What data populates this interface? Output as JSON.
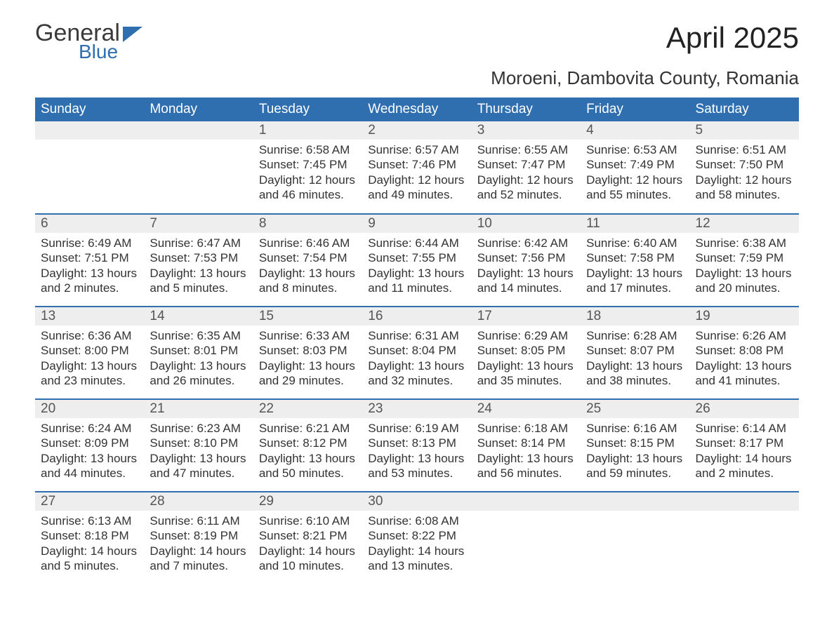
{
  "logo": {
    "text1": "General",
    "text2": "Blue"
  },
  "title": "April 2025",
  "location": "Moroeni, Dambovita County, Romania",
  "colors": {
    "header_bg": "#2f6fb0",
    "header_fg": "#ffffff",
    "daynum_bg": "#eeeeee",
    "text": "#333333",
    "page_bg": "#ffffff"
  },
  "dow": [
    "Sunday",
    "Monday",
    "Tuesday",
    "Wednesday",
    "Thursday",
    "Friday",
    "Saturday"
  ],
  "weeks": [
    [
      null,
      null,
      {
        "n": "1",
        "sr": "Sunrise: 6:58 AM",
        "ss": "Sunset: 7:45 PM",
        "d1": "Daylight: 12 hours",
        "d2": "and 46 minutes."
      },
      {
        "n": "2",
        "sr": "Sunrise: 6:57 AM",
        "ss": "Sunset: 7:46 PM",
        "d1": "Daylight: 12 hours",
        "d2": "and 49 minutes."
      },
      {
        "n": "3",
        "sr": "Sunrise: 6:55 AM",
        "ss": "Sunset: 7:47 PM",
        "d1": "Daylight: 12 hours",
        "d2": "and 52 minutes."
      },
      {
        "n": "4",
        "sr": "Sunrise: 6:53 AM",
        "ss": "Sunset: 7:49 PM",
        "d1": "Daylight: 12 hours",
        "d2": "and 55 minutes."
      },
      {
        "n": "5",
        "sr": "Sunrise: 6:51 AM",
        "ss": "Sunset: 7:50 PM",
        "d1": "Daylight: 12 hours",
        "d2": "and 58 minutes."
      }
    ],
    [
      {
        "n": "6",
        "sr": "Sunrise: 6:49 AM",
        "ss": "Sunset: 7:51 PM",
        "d1": "Daylight: 13 hours",
        "d2": "and 2 minutes."
      },
      {
        "n": "7",
        "sr": "Sunrise: 6:47 AM",
        "ss": "Sunset: 7:53 PM",
        "d1": "Daylight: 13 hours",
        "d2": "and 5 minutes."
      },
      {
        "n": "8",
        "sr": "Sunrise: 6:46 AM",
        "ss": "Sunset: 7:54 PM",
        "d1": "Daylight: 13 hours",
        "d2": "and 8 minutes."
      },
      {
        "n": "9",
        "sr": "Sunrise: 6:44 AM",
        "ss": "Sunset: 7:55 PM",
        "d1": "Daylight: 13 hours",
        "d2": "and 11 minutes."
      },
      {
        "n": "10",
        "sr": "Sunrise: 6:42 AM",
        "ss": "Sunset: 7:56 PM",
        "d1": "Daylight: 13 hours",
        "d2": "and 14 minutes."
      },
      {
        "n": "11",
        "sr": "Sunrise: 6:40 AM",
        "ss": "Sunset: 7:58 PM",
        "d1": "Daylight: 13 hours",
        "d2": "and 17 minutes."
      },
      {
        "n": "12",
        "sr": "Sunrise: 6:38 AM",
        "ss": "Sunset: 7:59 PM",
        "d1": "Daylight: 13 hours",
        "d2": "and 20 minutes."
      }
    ],
    [
      {
        "n": "13",
        "sr": "Sunrise: 6:36 AM",
        "ss": "Sunset: 8:00 PM",
        "d1": "Daylight: 13 hours",
        "d2": "and 23 minutes."
      },
      {
        "n": "14",
        "sr": "Sunrise: 6:35 AM",
        "ss": "Sunset: 8:01 PM",
        "d1": "Daylight: 13 hours",
        "d2": "and 26 minutes."
      },
      {
        "n": "15",
        "sr": "Sunrise: 6:33 AM",
        "ss": "Sunset: 8:03 PM",
        "d1": "Daylight: 13 hours",
        "d2": "and 29 minutes."
      },
      {
        "n": "16",
        "sr": "Sunrise: 6:31 AM",
        "ss": "Sunset: 8:04 PM",
        "d1": "Daylight: 13 hours",
        "d2": "and 32 minutes."
      },
      {
        "n": "17",
        "sr": "Sunrise: 6:29 AM",
        "ss": "Sunset: 8:05 PM",
        "d1": "Daylight: 13 hours",
        "d2": "and 35 minutes."
      },
      {
        "n": "18",
        "sr": "Sunrise: 6:28 AM",
        "ss": "Sunset: 8:07 PM",
        "d1": "Daylight: 13 hours",
        "d2": "and 38 minutes."
      },
      {
        "n": "19",
        "sr": "Sunrise: 6:26 AM",
        "ss": "Sunset: 8:08 PM",
        "d1": "Daylight: 13 hours",
        "d2": "and 41 minutes."
      }
    ],
    [
      {
        "n": "20",
        "sr": "Sunrise: 6:24 AM",
        "ss": "Sunset: 8:09 PM",
        "d1": "Daylight: 13 hours",
        "d2": "and 44 minutes."
      },
      {
        "n": "21",
        "sr": "Sunrise: 6:23 AM",
        "ss": "Sunset: 8:10 PM",
        "d1": "Daylight: 13 hours",
        "d2": "and 47 minutes."
      },
      {
        "n": "22",
        "sr": "Sunrise: 6:21 AM",
        "ss": "Sunset: 8:12 PM",
        "d1": "Daylight: 13 hours",
        "d2": "and 50 minutes."
      },
      {
        "n": "23",
        "sr": "Sunrise: 6:19 AM",
        "ss": "Sunset: 8:13 PM",
        "d1": "Daylight: 13 hours",
        "d2": "and 53 minutes."
      },
      {
        "n": "24",
        "sr": "Sunrise: 6:18 AM",
        "ss": "Sunset: 8:14 PM",
        "d1": "Daylight: 13 hours",
        "d2": "and 56 minutes."
      },
      {
        "n": "25",
        "sr": "Sunrise: 6:16 AM",
        "ss": "Sunset: 8:15 PM",
        "d1": "Daylight: 13 hours",
        "d2": "and 59 minutes."
      },
      {
        "n": "26",
        "sr": "Sunrise: 6:14 AM",
        "ss": "Sunset: 8:17 PM",
        "d1": "Daylight: 14 hours",
        "d2": "and 2 minutes."
      }
    ],
    [
      {
        "n": "27",
        "sr": "Sunrise: 6:13 AM",
        "ss": "Sunset: 8:18 PM",
        "d1": "Daylight: 14 hours",
        "d2": "and 5 minutes."
      },
      {
        "n": "28",
        "sr": "Sunrise: 6:11 AM",
        "ss": "Sunset: 8:19 PM",
        "d1": "Daylight: 14 hours",
        "d2": "and 7 minutes."
      },
      {
        "n": "29",
        "sr": "Sunrise: 6:10 AM",
        "ss": "Sunset: 8:21 PM",
        "d1": "Daylight: 14 hours",
        "d2": "and 10 minutes."
      },
      {
        "n": "30",
        "sr": "Sunrise: 6:08 AM",
        "ss": "Sunset: 8:22 PM",
        "d1": "Daylight: 14 hours",
        "d2": "and 13 minutes."
      },
      null,
      null,
      null
    ]
  ]
}
